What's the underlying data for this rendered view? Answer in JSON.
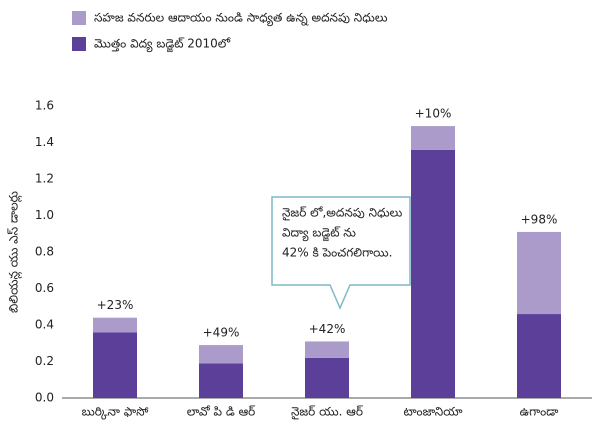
{
  "chart_data": {
    "type": "bar",
    "stacked": true,
    "y_label": "బిలియన్ల యు ఎస్ డాలర్లు",
    "categories": [
      "బుర్కినా ఫాసో",
      "లావో పి డి ఆర్",
      "నైజర్ యు. ఆర్",
      "టాంజానియా",
      "ఉగాండా"
    ],
    "series": [
      {
        "name": "మొత్తం విద్య బడ్జెట్ 2010లో",
        "color": "#5b3f98",
        "values": [
          0.36,
          0.19,
          0.22,
          1.36,
          0.46
        ]
      },
      {
        "name": "సహజ వనరుల ఆదాయం నుండి సాధ్యత ఉన్న అదనపు నిధులు",
        "color": "#ab9bcb",
        "values": [
          0.08,
          0.1,
          0.09,
          0.13,
          0.45
        ]
      }
    ],
    "bar_annotations": [
      "+23%",
      "+49%",
      "+42%",
      "+10%",
      "+98%"
    ],
    "callout": [
      "నైజర్ లో,అదనపు నిధులు",
      "విద్యా బడ్జెట్ ను",
      "42% కి పెంచగలిగాయి."
    ],
    "ylim": [
      0,
      1.6
    ],
    "yticks": [
      {
        "value": 0,
        "label": "0.0"
      },
      0.2,
      0.4,
      0.6,
      0.8,
      {
        "value": 1,
        "label": "1.0"
      },
      1.2,
      1.4,
      1.6
    ]
  }
}
